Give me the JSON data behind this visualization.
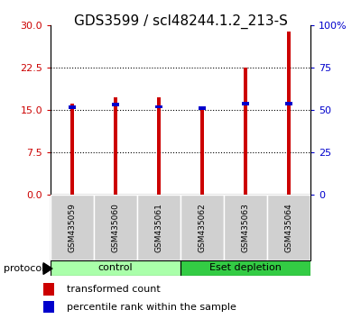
{
  "title": "GDS3599 / scl48244.1.2_213-S",
  "samples": [
    "GSM435059",
    "GSM435060",
    "GSM435061",
    "GSM435062",
    "GSM435063",
    "GSM435064"
  ],
  "red_values": [
    16.2,
    17.2,
    17.2,
    15.3,
    22.5,
    29.0
  ],
  "blue_values": [
    15.5,
    16.0,
    15.6,
    15.3,
    16.2,
    16.2
  ],
  "left_ylim": [
    0,
    30
  ],
  "right_ylim": [
    0,
    100
  ],
  "left_yticks": [
    0,
    7.5,
    15,
    22.5,
    30
  ],
  "right_yticks": [
    0,
    25,
    50,
    75,
    100
  ],
  "right_yticklabels": [
    "0",
    "25",
    "50",
    "75",
    "100%"
  ],
  "groups": [
    {
      "label": "control",
      "samples": [
        0,
        1,
        2
      ],
      "color": "#aaffaa"
    },
    {
      "label": "Eset depletion",
      "samples": [
        3,
        4,
        5
      ],
      "color": "#33cc44"
    }
  ],
  "red_bar_width": 0.08,
  "blue_bar_width": 0.18,
  "blue_bar_height": 0.6,
  "red_color": "#CC0000",
  "blue_color": "#0000CC",
  "bg_sample_box": "#d0d0d0",
  "title_fontsize": 11,
  "tick_label_fontsize": 8,
  "legend_fontsize": 8,
  "axis_label_color_left": "#cc0000",
  "axis_label_color_right": "#0000cc",
  "protocol_label": "protocol",
  "legend_red": "transformed count",
  "legend_blue": "percentile rank within the sample"
}
